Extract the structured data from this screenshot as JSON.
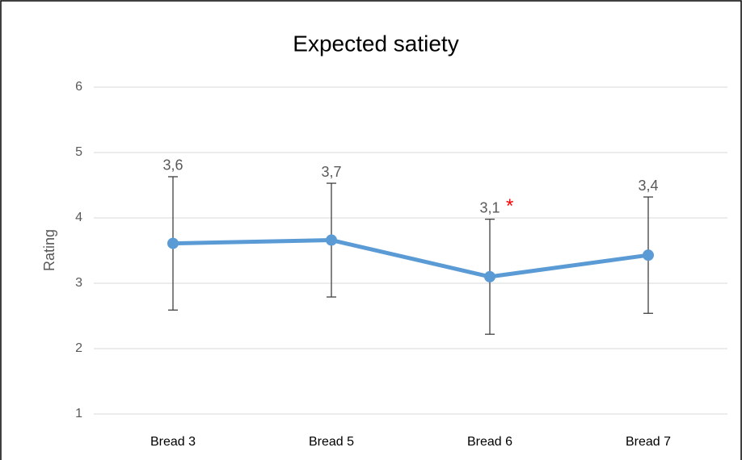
{
  "chart_data": {
    "type": "line",
    "title": "Expected satiety",
    "y_label": "Rating",
    "categories": [
      "Bread 3",
      "Bread 5",
      "Bread 6",
      "Bread 7"
    ],
    "series": [
      {
        "name": "Expected satiety",
        "color": "#5b9bd5",
        "values": [
          3.61,
          3.66,
          3.1,
          3.43
        ],
        "value_labels": [
          "3,6",
          "3,7",
          "3,1",
          "3,4"
        ],
        "errors": [
          1.02,
          0.87,
          0.88,
          0.89
        ]
      }
    ],
    "annotation": "*",
    "annotation_color": "#ff0000",
    "ylim": [
      1,
      6
    ],
    "yticks": [
      1,
      2,
      3,
      4,
      5,
      6
    ],
    "grid": true
  }
}
